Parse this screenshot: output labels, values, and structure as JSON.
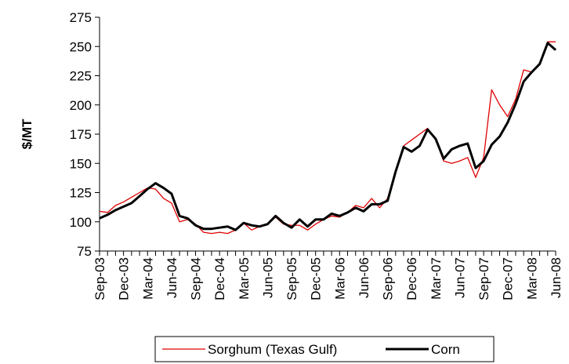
{
  "chart_data": {
    "type": "line",
    "y_label": "$/MT",
    "categories": [
      "Sep-03",
      null,
      null,
      "Dec-03",
      null,
      null,
      "Mar-04",
      null,
      null,
      "Jun-04",
      null,
      null,
      "Sep-04",
      null,
      null,
      "Dec-04",
      null,
      null,
      "Mar-05",
      null,
      null,
      "Jun-05",
      null,
      null,
      "Sep-05",
      null,
      null,
      "Dec-05",
      null,
      null,
      "Mar-06",
      null,
      null,
      "Jun-06",
      null,
      null,
      "Sep-06",
      null,
      null,
      "Dec-06",
      null,
      null,
      "Mar-07",
      null,
      null,
      "Jun-07",
      null,
      null,
      "Sep-07",
      null,
      null,
      "Dec-07",
      null,
      null,
      "Mar-08",
      null,
      null,
      "Jun-08"
    ],
    "series": [
      {
        "name": "Sorghum (Texas Gulf)",
        "color": "#e00000",
        "width": 1.3,
        "values": [
          109,
          108,
          114,
          117,
          121,
          125,
          129,
          128,
          120,
          116,
          100,
          102,
          98,
          91,
          90,
          91,
          90,
          93,
          99,
          93,
          96,
          98,
          104,
          98,
          97,
          97,
          93,
          98,
          102,
          105,
          104,
          108,
          114,
          112,
          120,
          112,
          120,
          144,
          165,
          170,
          175,
          180,
          170,
          152,
          150,
          152,
          155,
          138,
          155,
          213,
          200,
          190,
          205,
          230,
          228,
          235,
          254,
          254
        ]
      },
      {
        "name": "Corn",
        "color": "#000000",
        "width": 3,
        "values": [
          103,
          106,
          110,
          113,
          116,
          122,
          128,
          133,
          129,
          124,
          105,
          103,
          97,
          94,
          94,
          95,
          96,
          93,
          99,
          97,
          96,
          98,
          105,
          99,
          95,
          102,
          96,
          102,
          102,
          107,
          105,
          108,
          112,
          109,
          115,
          115,
          118,
          143,
          164,
          160,
          165,
          179,
          171,
          154,
          162,
          165,
          167,
          146,
          152,
          166,
          173,
          185,
          201,
          220,
          228,
          235,
          253,
          247
        ]
      }
    ],
    "ylim": [
      75,
      275
    ],
    "yticks": [
      75,
      100,
      125,
      150,
      175,
      200,
      225,
      250,
      275
    ],
    "legend": "bottom"
  }
}
